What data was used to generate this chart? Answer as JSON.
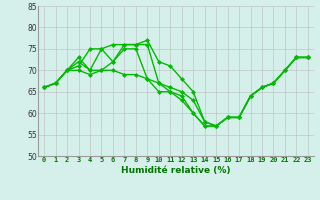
{
  "xlabel": "Humidité relative (%)",
  "background_color": "#d5f0eb",
  "grid_color": "#bbbbbb",
  "line_color": "#00bb00",
  "marker": "D",
  "markersize": 2.0,
  "linewidth": 1.0,
  "ylim": [
    50,
    85
  ],
  "xlim": [
    -0.5,
    23.5
  ],
  "yticks": [
    50,
    55,
    60,
    65,
    70,
    75,
    80,
    85
  ],
  "xticks": [
    0,
    1,
    2,
    3,
    4,
    5,
    6,
    7,
    8,
    9,
    10,
    11,
    12,
    13,
    14,
    15,
    16,
    17,
    18,
    19,
    20,
    21,
    22,
    23
  ],
  "xlabel_color": "#007700",
  "xlabel_fontsize": 6.5,
  "xtick_fontsize": 5.0,
  "ytick_fontsize": 5.5,
  "series": [
    [
      66,
      67,
      70,
      70,
      69,
      70,
      70,
      69,
      69,
      68,
      65,
      65,
      64,
      60,
      57,
      57,
      59,
      59,
      64,
      66,
      67,
      70,
      73,
      73
    ],
    [
      66,
      67,
      70,
      72,
      70,
      70,
      72,
      75,
      75,
      68,
      67,
      66,
      65,
      63,
      58,
      57,
      59,
      59,
      64,
      66,
      67,
      70,
      73,
      73
    ],
    [
      66,
      67,
      70,
      71,
      75,
      75,
      72,
      76,
      76,
      77,
      72,
      71,
      68,
      65,
      58,
      57,
      59,
      59,
      64,
      66,
      67,
      70,
      73,
      73
    ],
    [
      66,
      67,
      70,
      73,
      70,
      75,
      76,
      76,
      76,
      76,
      67,
      65,
      63,
      60,
      57,
      57,
      59,
      59,
      64,
      66,
      67,
      70,
      73,
      73
    ]
  ]
}
